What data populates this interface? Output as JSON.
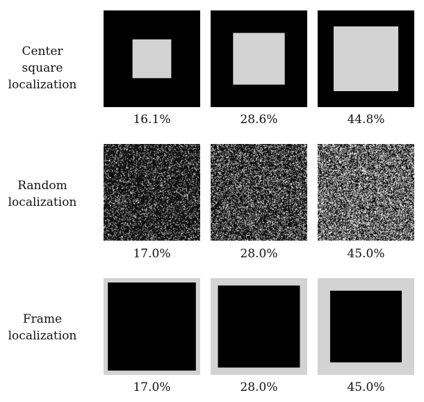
{
  "colors": {
    "mask": "#000000",
    "region": "#d3d3d3",
    "noise_bg": "#1a1a1a",
    "noise_fg": "#d8d8d8"
  },
  "rows": [
    {
      "label_lines": [
        "Center square",
        "localization"
      ],
      "type": "center-square",
      "cells": [
        {
          "percent": "16.1%",
          "fraction": 0.161
        },
        {
          "percent": "28.6%",
          "fraction": 0.286
        },
        {
          "percent": "44.8%",
          "fraction": 0.448
        }
      ]
    },
    {
      "label_lines": [
        "Random",
        "localization"
      ],
      "type": "random",
      "cells": [
        {
          "percent": "17.0%",
          "fraction": 0.17
        },
        {
          "percent": "28.0%",
          "fraction": 0.28
        },
        {
          "percent": "45.0%",
          "fraction": 0.45
        }
      ]
    },
    {
      "label_lines": [
        "Frame",
        "localization"
      ],
      "type": "frame",
      "cells": [
        {
          "percent": "17.0%",
          "fraction": 0.17
        },
        {
          "percent": "28.0%",
          "fraction": 0.28
        },
        {
          "percent": "45.0%",
          "fraction": 0.45
        }
      ]
    }
  ]
}
